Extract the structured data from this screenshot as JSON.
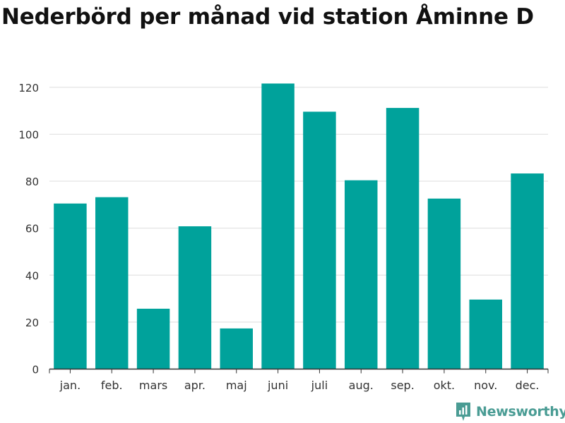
{
  "header": {
    "title": "Nederbörd per månad vid station Åminne D"
  },
  "brand": {
    "name": "Newsworthy",
    "icon": "newsworthy-logo-icon",
    "color": "#4a9c94"
  },
  "chart_data": {
    "type": "bar",
    "title": "Nederbörd per månad vid station Åminne D",
    "xlabel": "",
    "ylabel": "",
    "categories": [
      "jan.",
      "feb.",
      "mars",
      "apr.",
      "maj",
      "juni",
      "juli",
      "aug.",
      "sep.",
      "okt.",
      "nov.",
      "dec."
    ],
    "values": [
      70.5,
      73.2,
      25.7,
      60.8,
      17.3,
      121.6,
      109.6,
      80.4,
      111.2,
      72.6,
      29.6,
      83.3
    ],
    "ylim": [
      0,
      130
    ],
    "yticks": [
      0,
      20,
      40,
      60,
      80,
      100,
      120
    ],
    "grid": true,
    "legend": "none",
    "bar_color": "#00a29b"
  }
}
